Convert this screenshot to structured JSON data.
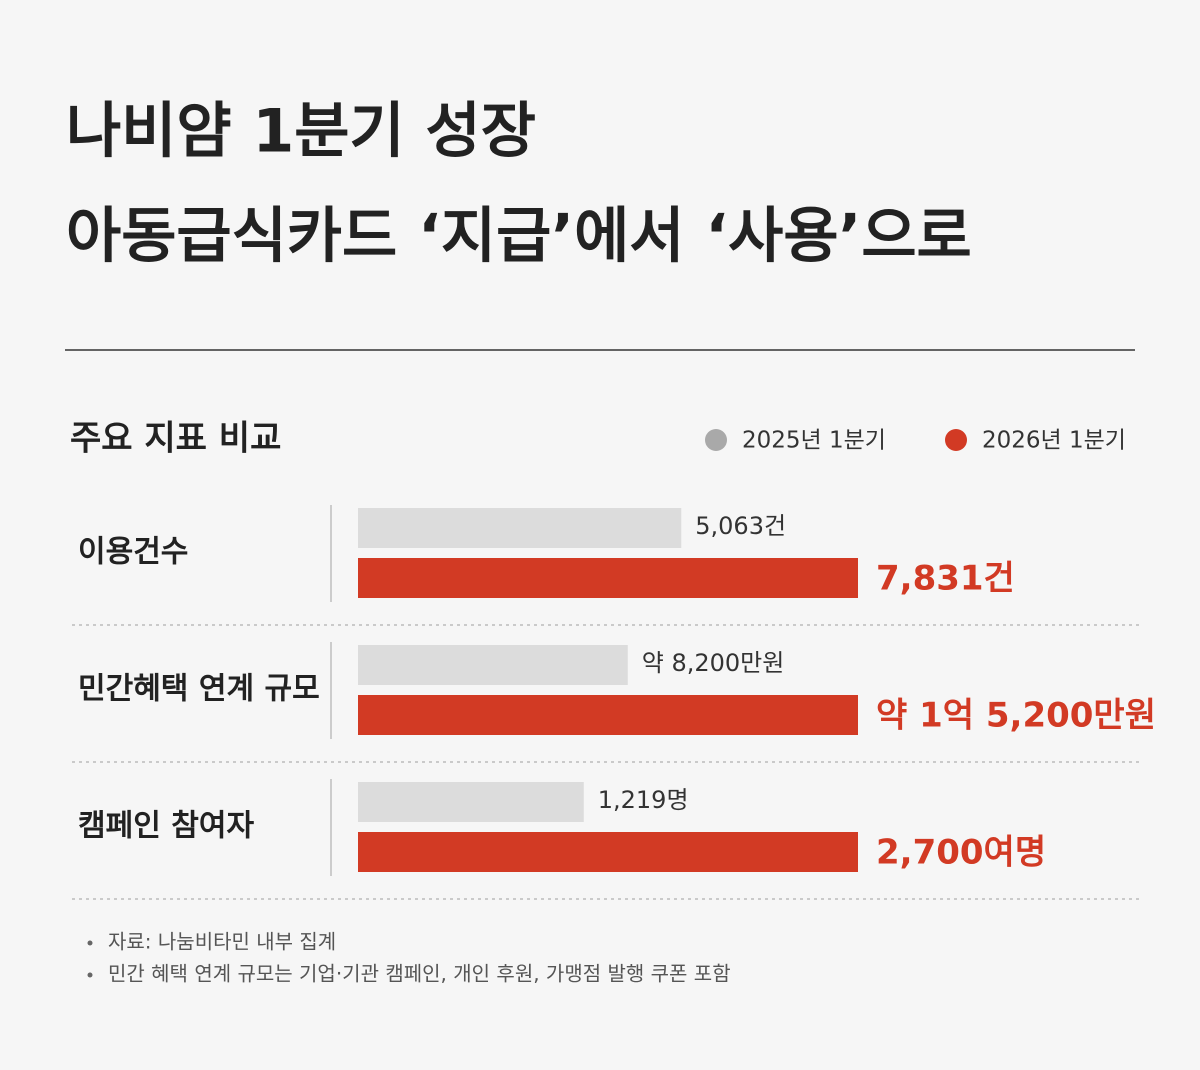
{
  "chart_data": {
    "type": "bar",
    "title": [
      "나비얌 1분기 성장",
      "아동급식카드 ‘지급’에서 ‘사용’으로"
    ],
    "subtitle": "주요 지표 비교",
    "categories": [
      "이용건수",
      "민간혜택 연계 규모",
      "캠페인 참여자"
    ],
    "series": [
      {
        "name": "2025년 1분기",
        "color": "#dcdcdc",
        "legend_color": "#a9a9a9",
        "values": [
          5063,
          82000000,
          1219
        ],
        "value_labels": [
          "5,063건",
          "약 8,200만원",
          "1,219명"
        ]
      },
      {
        "name": "2026년 1분기",
        "color": "#d23a24",
        "legend_color": "#d23a24",
        "values": [
          7831,
          152000000,
          2700
        ],
        "value_labels": [
          "7,831건",
          "약 1억 5,200만원",
          "2,700여명"
        ]
      }
    ],
    "notes": [
      "자료: 나눔비타민 내부 집계",
      "민간 혜택 연계 규모는 기업·기관 캠페인, 개인 후원, 가맹점 발행 쿠폰 포함"
    ]
  }
}
